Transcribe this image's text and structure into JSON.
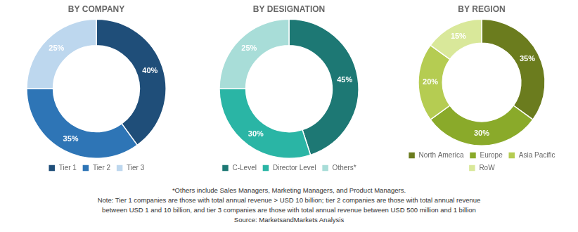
{
  "chart_data": [
    {
      "type": "doughnut",
      "title": "BY COMPANY",
      "categories": [
        "Tier 1",
        "Tier 2",
        "Tier 3"
      ],
      "values": [
        40,
        35,
        25
      ],
      "value_labels": [
        "40%",
        "35%",
        "25%"
      ],
      "colors": [
        "#1f4e79",
        "#2e75b6",
        "#bdd7ee"
      ],
      "data_labels": true,
      "legend": "bottom"
    },
    {
      "type": "doughnut",
      "title": "BY DESIGNATION",
      "categories": [
        "C-Level",
        "Director Level",
        "Others*"
      ],
      "values": [
        45,
        30,
        25
      ],
      "value_labels": [
        "45%",
        "30%",
        "25%"
      ],
      "colors": [
        "#1d7874",
        "#2ab5a5",
        "#a8ddd8"
      ],
      "data_labels": true,
      "legend": "bottom"
    },
    {
      "type": "doughnut",
      "title": "BY REGION",
      "categories": [
        "North America",
        "Europe",
        "Asia Pacific",
        "RoW"
      ],
      "values": [
        35,
        30,
        20,
        15
      ],
      "value_labels": [
        "35%",
        "30%",
        "20%",
        "15%"
      ],
      "colors": [
        "#6b7c1e",
        "#8aaa2a",
        "#b5cc52",
        "#d9e89a"
      ],
      "data_labels": true,
      "legend": "bottom"
    }
  ],
  "annotations": [
    "*Others include Sales Managers, Marketing Managers, and Product Managers.",
    "Note: Tier 1 companies are those with total annual revenue > USD 10 billion; tier 2 companies are those with total annual revenue",
    "between USD 1 and 10 billion, and tier 3 companies are those with total annual revenue between USD 500 million and 1 billion",
    "Source: MarketsandMarkets Analysis"
  ]
}
